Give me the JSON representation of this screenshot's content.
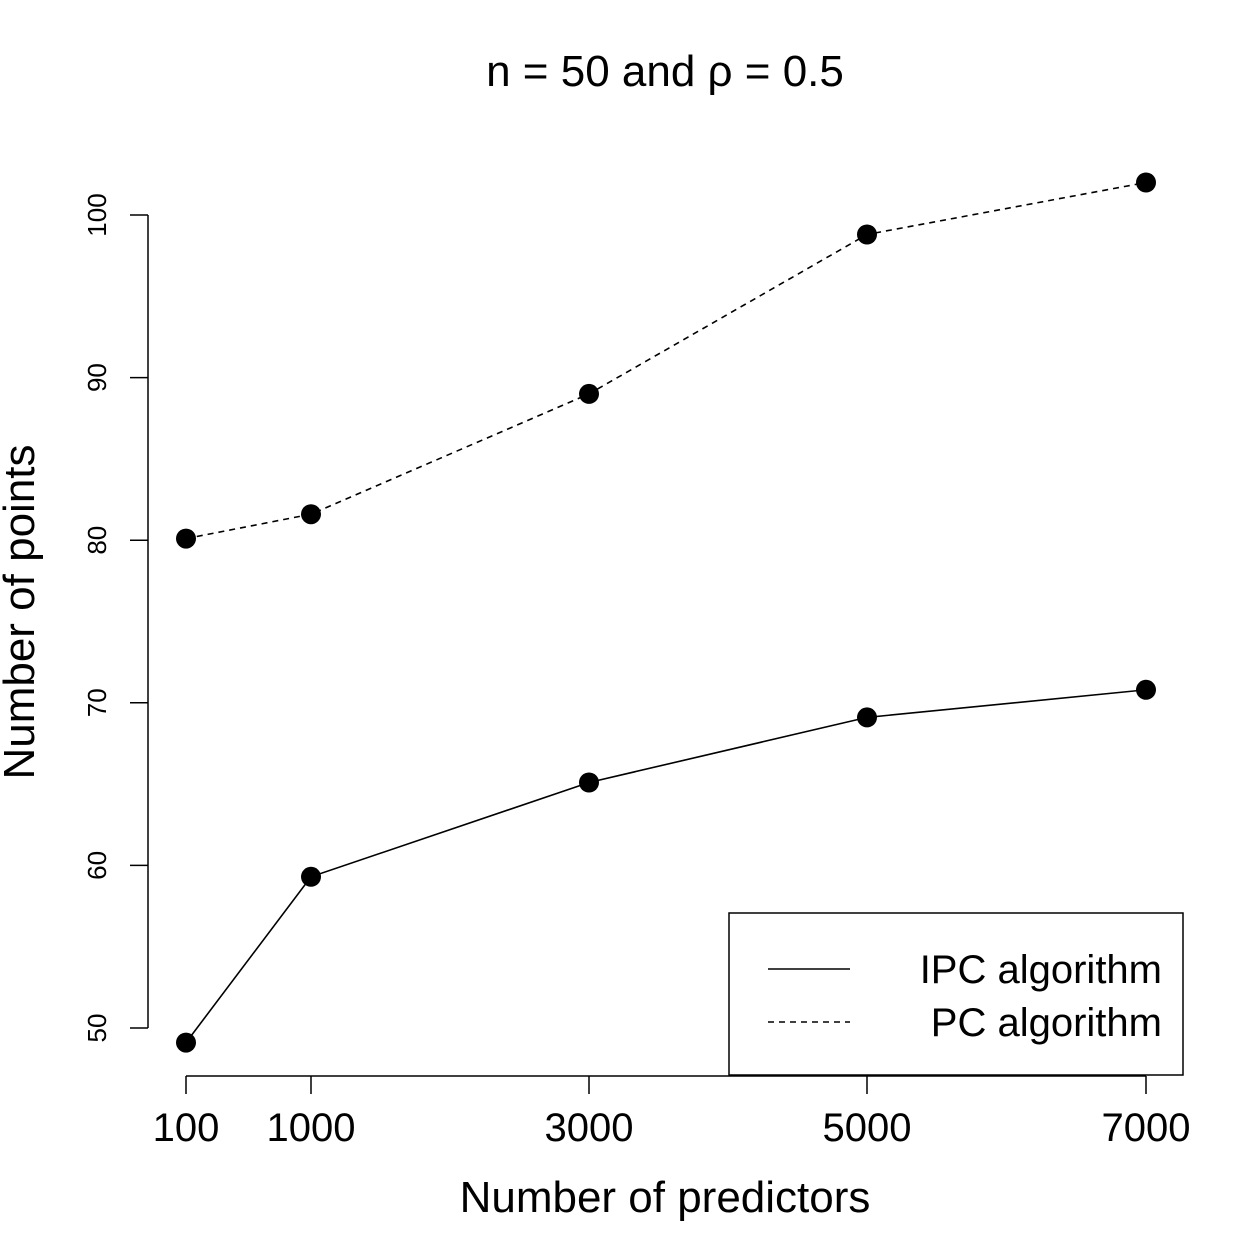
{
  "chart_data": {
    "type": "line",
    "title": "n = 50 and ρ = 0.5",
    "xlabel": "Number of predictors",
    "ylabel": "Number of points",
    "x": [
      100,
      1000,
      3000,
      5000,
      7000
    ],
    "x_tick_labels": [
      "100",
      "1000",
      "3000",
      "5000",
      "7000"
    ],
    "y_ticks": [
      50,
      60,
      70,
      80,
      90,
      100
    ],
    "y_tick_labels": [
      "50",
      "60",
      "70",
      "80",
      "90",
      "100"
    ],
    "ylim": [
      47,
      105
    ],
    "grid": false,
    "legend_position": "bottom-right",
    "series": [
      {
        "name": "IPC algorithm",
        "line_style": "solid",
        "values": [
          49.1,
          59.3,
          65.1,
          69.1,
          70.8
        ]
      },
      {
        "name": "PC algorithm",
        "line_style": "dashed",
        "values": [
          80.1,
          81.6,
          89.0,
          98.8,
          102.0
        ]
      }
    ]
  }
}
